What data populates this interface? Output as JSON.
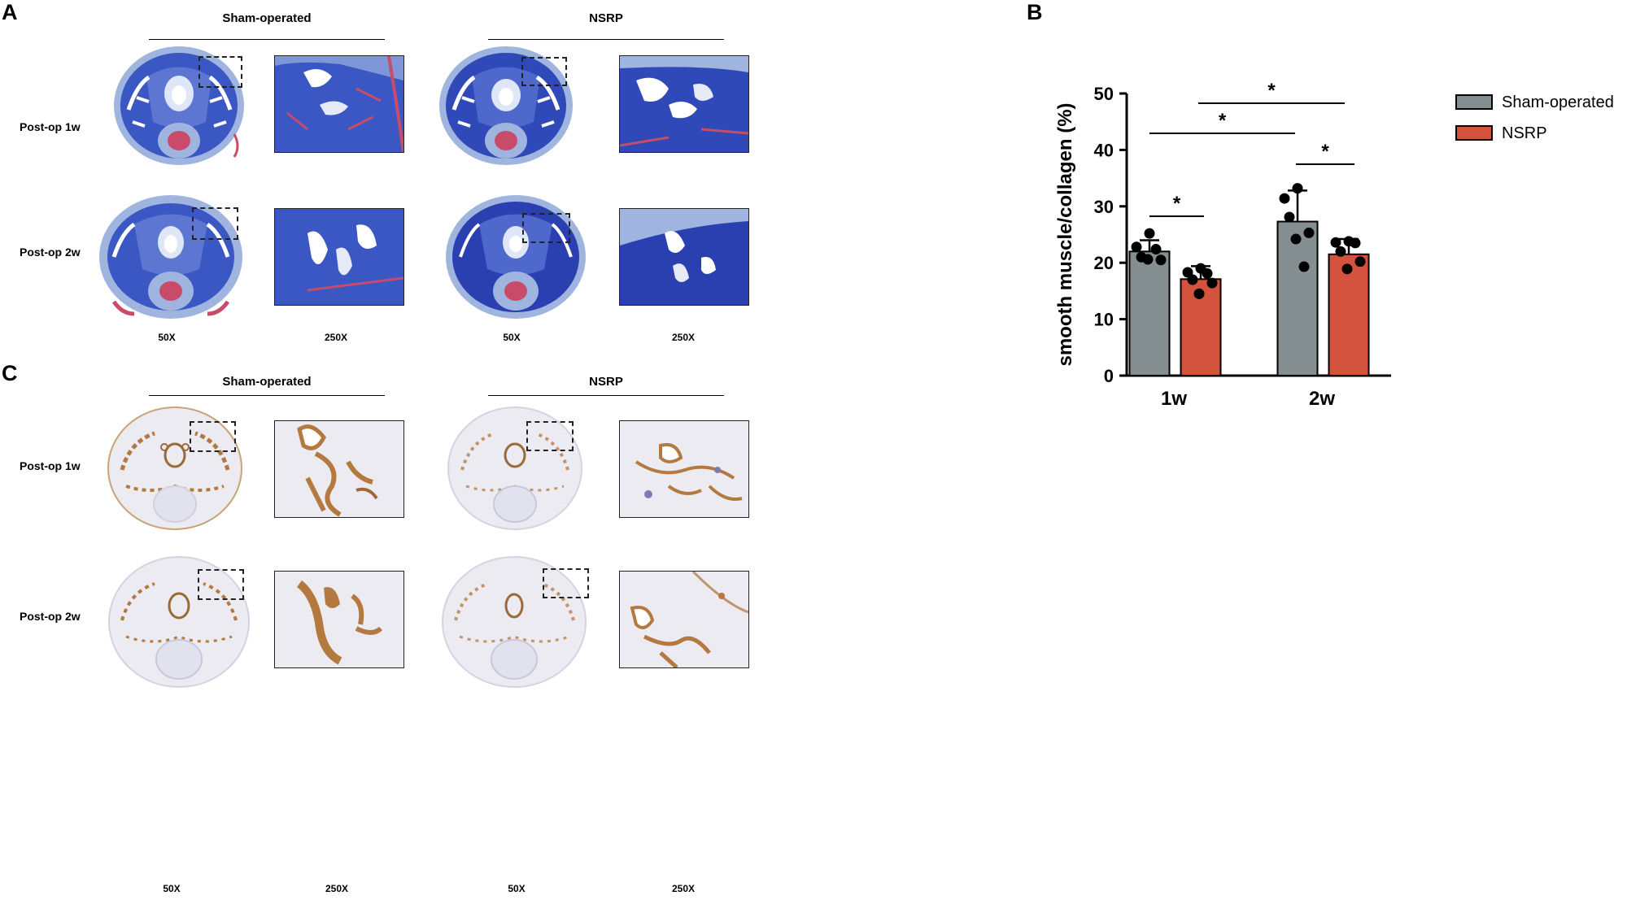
{
  "panels": {
    "a": {
      "letter": "A",
      "groups": [
        "Sham-operated",
        "NSRP"
      ],
      "rows": [
        "Post-op 1w",
        "Post-op 2w"
      ],
      "magnifications": [
        "50X",
        "250X",
        "50X",
        "250X"
      ],
      "stain": "masson-trichrome"
    },
    "b": {
      "letter": "B"
    },
    "c": {
      "letter": "C",
      "groups": [
        "Sham-operated",
        "NSRP"
      ],
      "rows": [
        "Post-op 1w",
        "Post-op 2w"
      ],
      "magnifications": [
        "50X",
        "250X",
        "50X",
        "250X"
      ],
      "stain": "smooth-muscle-actin-ihc"
    }
  },
  "colors": {
    "sham": "#858f91",
    "nsrp": "#d3533f",
    "masson_blue": "#3a57c4",
    "masson_light": "#9fb4de",
    "ihc_bg": "#ecebf2",
    "ihc_brown": "#b3793f"
  },
  "chart_data": {
    "type": "bar",
    "categories": [
      "1w",
      "2w"
    ],
    "series": [
      {
        "name": "Sham-operated",
        "values": [
          22.0,
          27.3
        ],
        "sd": [
          2.0,
          5.5
        ],
        "points": [
          [
            22.8,
            25.2,
            20.5,
            21.0,
            22.4,
            20.6
          ],
          [
            31.4,
            33.2,
            25.3,
            28.1,
            19.3,
            24.2
          ]
        ]
      },
      {
        "name": "NSRP",
        "values": [
          17.1,
          21.5
        ],
        "sd": [
          2.3,
          2.7
        ],
        "points": [
          [
            18.3,
            19.0,
            16.4,
            17.0,
            18.1,
            14.5
          ],
          [
            23.6,
            23.8,
            20.2,
            22.0,
            23.5,
            18.9
          ]
        ]
      }
    ],
    "ylabel": "smooth muscle/collagen (%)",
    "xlabel": "",
    "ylim": [
      0,
      50
    ],
    "yticks": [
      0,
      10,
      20,
      30,
      40,
      50
    ],
    "legend": [
      "Sham-operated",
      "NSRP"
    ],
    "legend_position": "right",
    "significance": [
      {
        "label": "*",
        "between": [
          "1w Sham-operated",
          "1w NSRP"
        ]
      },
      {
        "label": "*",
        "between": [
          "2w Sham-operated",
          "2w NSRP"
        ]
      },
      {
        "label": "*",
        "between": [
          "1w Sham-operated",
          "2w Sham-operated"
        ]
      },
      {
        "label": "*",
        "between": [
          "1w NSRP",
          "2w NSRP"
        ]
      }
    ]
  }
}
